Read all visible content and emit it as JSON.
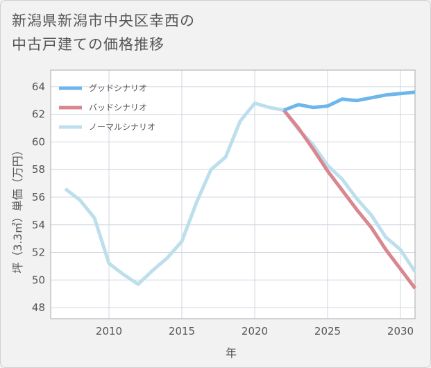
{
  "chart_data": {
    "type": "line",
    "title_lines": [
      "新潟県新潟市中央区幸西の",
      "中古戸建ての価格推移"
    ],
    "xlabel": "年",
    "ylabel": "坪（3.3㎡）単価（万円）",
    "xlim": [
      2006,
      2031
    ],
    "ylim": [
      47.2,
      65.2
    ],
    "xticks": [
      2010,
      2015,
      2020,
      2025,
      2030
    ],
    "xtick_labels": [
      "2010",
      "2015",
      "2020",
      "2025",
      "2030"
    ],
    "yticks": [
      48,
      50,
      52,
      54,
      56,
      58,
      60,
      62,
      64
    ],
    "ytick_labels": [
      "48",
      "50",
      "52",
      "54",
      "56",
      "58",
      "60",
      "62",
      "64"
    ],
    "grid": true,
    "legend_position": "top-left",
    "series": [
      {
        "name": "グッドシナリオ",
        "color": "#6cb6ec",
        "x": [
          2022,
          2023,
          2024,
          2025,
          2026,
          2027,
          2028,
          2029,
          2030,
          2031
        ],
        "values": [
          62.3,
          62.7,
          62.5,
          62.6,
          63.1,
          63.0,
          63.2,
          63.4,
          63.5,
          63.6
        ]
      },
      {
        "name": "バッドシナリオ",
        "color": "#d9868f",
        "x": [
          2022,
          2023,
          2024,
          2025,
          2026,
          2027,
          2028,
          2029,
          2030,
          2031
        ],
        "values": [
          62.3,
          61.0,
          59.5,
          57.9,
          56.5,
          55.1,
          53.8,
          52.2,
          50.8,
          49.4
        ]
      },
      {
        "name": "ノーマルシナリオ",
        "color": "#bddfec",
        "x": [
          2007,
          2008,
          2009,
          2010,
          2011,
          2012,
          2013,
          2014,
          2015,
          2016,
          2017,
          2018,
          2019,
          2020,
          2021,
          2022,
          2023,
          2024,
          2025,
          2026,
          2027,
          2028,
          2029,
          2030,
          2031
        ],
        "values": [
          56.6,
          55.8,
          54.5,
          51.2,
          50.4,
          49.7,
          50.7,
          51.6,
          52.8,
          55.6,
          58.0,
          58.9,
          61.5,
          62.8,
          62.5,
          62.3,
          60.9,
          59.8,
          58.3,
          57.3,
          55.9,
          54.7,
          53.1,
          52.2,
          50.6
        ]
      }
    ]
  }
}
